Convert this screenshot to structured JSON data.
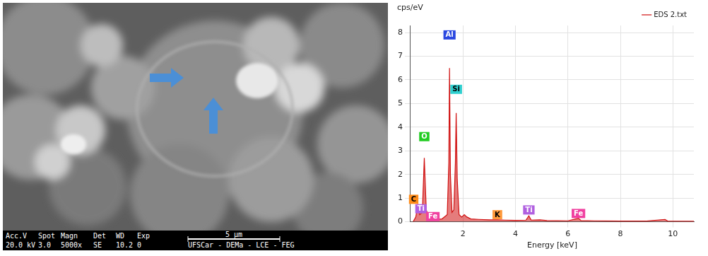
{
  "image": {
    "info_header": [
      "Acc.V",
      "Spot",
      "Magn",
      "Det",
      "WD",
      "Exp"
    ],
    "info_values": [
      "20.0 kV",
      "3.0",
      "5000x",
      "SE",
      "10.2",
      "0"
    ],
    "scale_bar": "5 μm",
    "credit": "UFSCar - DEMa - LCE - FEG"
  },
  "chart_data": {
    "type": "line",
    "y_label": "cps/eV",
    "x_label": "Energy [keV]",
    "x": [
      0.1,
      0.2,
      0.28,
      0.35,
      0.45,
      0.525,
      0.6,
      0.7,
      0.8,
      1.0,
      1.2,
      1.4,
      1.46,
      1.486,
      1.52,
      1.58,
      1.65,
      1.71,
      1.74,
      1.78,
      1.85,
      1.95,
      2.05,
      2.15,
      2.3,
      2.6,
      3.0,
      3.31,
      3.6,
      4.0,
      4.4,
      4.51,
      4.6,
      4.93,
      5.2,
      6.0,
      6.4,
      6.5,
      7.0,
      8.0,
      9.0,
      9.7,
      9.8,
      10.8
    ],
    "series": [
      {
        "name": "EDS 2.txt",
        "color": "#d01010",
        "values": [
          0,
          0.2,
          0.7,
          0.3,
          0.4,
          2.7,
          0.5,
          0.2,
          0.1,
          0.1,
          0.12,
          0.3,
          2.5,
          6.5,
          2.0,
          0.4,
          0.5,
          2.5,
          4.6,
          1.8,
          0.3,
          0.2,
          0.3,
          0.2,
          0.12,
          0.1,
          0.08,
          0.08,
          0.07,
          0.06,
          0.07,
          0.25,
          0.07,
          0.08,
          0.05,
          0.04,
          0.15,
          0.05,
          0.04,
          0.03,
          0.03,
          0.1,
          0.03,
          0.02
        ]
      }
    ],
    "xlim": [
      0,
      10.8
    ],
    "xticks": [
      2,
      4,
      6,
      8,
      10
    ],
    "ylim": [
      0,
      8.3
    ],
    "yticks": [
      0,
      1,
      2,
      3,
      4,
      5,
      6,
      7,
      8
    ],
    "grid": true,
    "legend": "top-right",
    "annotations": [
      {
        "text": "C",
        "x": 0.12,
        "y": 0.95,
        "color": "#ff8c1a"
      },
      {
        "text": "Ti",
        "x": 0.4,
        "y": 0.55,
        "color": "#b060e0"
      },
      {
        "text": "Fe",
        "x": 0.85,
        "y": 0.22,
        "color": "#f040a0"
      },
      {
        "text": "O",
        "x": 0.525,
        "y": 3.6,
        "color": "#22cc22"
      },
      {
        "text": "Al",
        "x": 1.486,
        "y": 7.9,
        "color": "#2a48e0"
      },
      {
        "text": "Si",
        "x": 1.74,
        "y": 5.6,
        "color": "#30d0d0"
      },
      {
        "text": "K",
        "x": 3.31,
        "y": 0.3,
        "color": "#ff9a3c"
      },
      {
        "text": "Ti",
        "x": 4.51,
        "y": 0.5,
        "color": "#b060e0"
      },
      {
        "text": "Fe",
        "x": 6.4,
        "y": 0.35,
        "color": "#f040a0"
      }
    ]
  }
}
